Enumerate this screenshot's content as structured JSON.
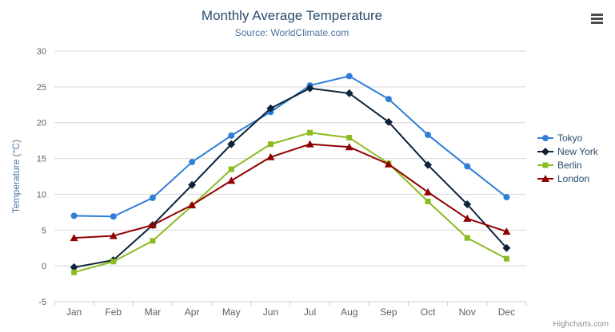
{
  "chart_data": {
    "type": "line",
    "title": "Monthly Average Temperature",
    "subtitle": "Source: WorldClimate.com",
    "categories": [
      "Jan",
      "Feb",
      "Mar",
      "Apr",
      "May",
      "Jun",
      "Jul",
      "Aug",
      "Sep",
      "Oct",
      "Nov",
      "Dec"
    ],
    "xlabel": "",
    "ylabel": "Temperature (°C)",
    "ylim": [
      -5,
      30
    ],
    "yticks": [
      -5,
      0,
      5,
      10,
      15,
      20,
      25,
      30
    ],
    "grid": true,
    "legend_position": "right",
    "series": [
      {
        "name": "Tokyo",
        "color": "#2f7ed8",
        "marker": "circle",
        "values": [
          7.0,
          6.9,
          9.5,
          14.5,
          18.2,
          21.5,
          25.2,
          26.5,
          23.3,
          18.3,
          13.9,
          9.6
        ]
      },
      {
        "name": "New York",
        "color": "#0d233a",
        "marker": "diamond",
        "values": [
          -0.2,
          0.8,
          5.7,
          11.3,
          17.0,
          22.0,
          24.8,
          24.1,
          20.1,
          14.1,
          8.6,
          2.5
        ]
      },
      {
        "name": "Berlin",
        "color": "#8bbc21",
        "marker": "square",
        "values": [
          -0.9,
          0.6,
          3.5,
          8.4,
          13.5,
          17.0,
          18.6,
          17.9,
          14.3,
          9.0,
          3.9,
          1.0
        ]
      },
      {
        "name": "London",
        "color": "#910000",
        "marker": "triangle",
        "values": [
          3.9,
          4.2,
          5.7,
          8.5,
          11.9,
          15.2,
          17.0,
          16.6,
          14.2,
          10.3,
          6.6,
          4.8
        ]
      }
    ]
  },
  "colors": {
    "title": "#274b6d",
    "subtitle": "#4d759e",
    "axis_label": "#606060",
    "grid": "#d8d8d8",
    "axis_line": "#c0d0e0",
    "legend_text": "#274b6d",
    "credits": "#909090",
    "menu_icon": "#4d4d4d"
  },
  "icons": {
    "context_menu": "hamburger-menu-icon"
  },
  "credits": {
    "label": "Highcharts.com"
  }
}
